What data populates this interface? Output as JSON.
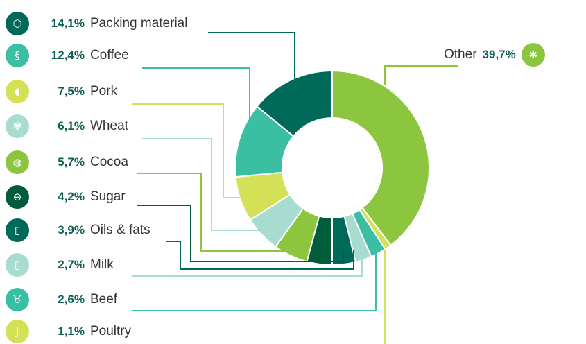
{
  "chart_data": {
    "type": "pie",
    "variant": "donut",
    "title": "",
    "categories": [
      "Other",
      "Poultry",
      "Beef",
      "Milk",
      "Oils & fats",
      "Sugar",
      "Cocoa",
      "Wheat",
      "Pork",
      "Coffee",
      "Packing material"
    ],
    "values": [
      39.7,
      1.1,
      2.6,
      2.7,
      3.9,
      4.2,
      5.7,
      6.1,
      7.5,
      12.4,
      14.1
    ],
    "value_labels": [
      "39,7%",
      "1,1%",
      "2,6%",
      "2,7%",
      "3,9%",
      "4,2%",
      "5,7%",
      "6,1%",
      "7,5%",
      "12,4%",
      "14,1%"
    ],
    "colors": [
      "#8cc63f",
      "#d4e157",
      "#3bbfa3",
      "#a8dcd1",
      "#006a5a",
      "#005c3a",
      "#8cc63f",
      "#a8dcd1",
      "#d4e157",
      "#3bbfa3",
      "#006a5a"
    ],
    "legend_placement": "left"
  },
  "legend": [
    {
      "pct": "14,1%",
      "name": "Packing material",
      "icon": "box-icon",
      "glyph": "⬡",
      "color": "#006a5a"
    },
    {
      "pct": "12,4%",
      "name": "Coffee",
      "icon": "coffee-bean-icon",
      "glyph": "§",
      "color": "#3bbfa3"
    },
    {
      "pct": "7,5%",
      "name": "Pork",
      "icon": "pig-icon",
      "glyph": "◖",
      "color": "#d4e157"
    },
    {
      "pct": "6,1%",
      "name": "Wheat",
      "icon": "wheat-icon",
      "glyph": "✾",
      "color": "#a8dcd1"
    },
    {
      "pct": "5,7%",
      "name": "Cocoa",
      "icon": "cocoa-pod-icon",
      "glyph": "◍",
      "color": "#8cc63f"
    },
    {
      "pct": "4,2%",
      "name": "Sugar",
      "icon": "sugar-icon",
      "glyph": "⊖",
      "color": "#005c3a"
    },
    {
      "pct": "3,9%",
      "name": "Oils & fats",
      "icon": "oil-bottle-icon",
      "glyph": "▯",
      "color": "#006a5a"
    },
    {
      "pct": "2,7%",
      "name": "Milk",
      "icon": "milk-bottle-icon",
      "glyph": "▯",
      "color": "#a8dcd1"
    },
    {
      "pct": "2,6%",
      "name": "Beef",
      "icon": "cow-icon",
      "glyph": "♉",
      "color": "#3bbfa3"
    },
    {
      "pct": "1,1%",
      "name": "Poultry",
      "icon": "drumstick-icon",
      "glyph": "J",
      "color": "#d4e157"
    }
  ],
  "other": {
    "pct": "39,7%",
    "name": "Other",
    "icon": "asterisk-icon",
    "glyph": "✱",
    "color": "#8cc63f"
  }
}
